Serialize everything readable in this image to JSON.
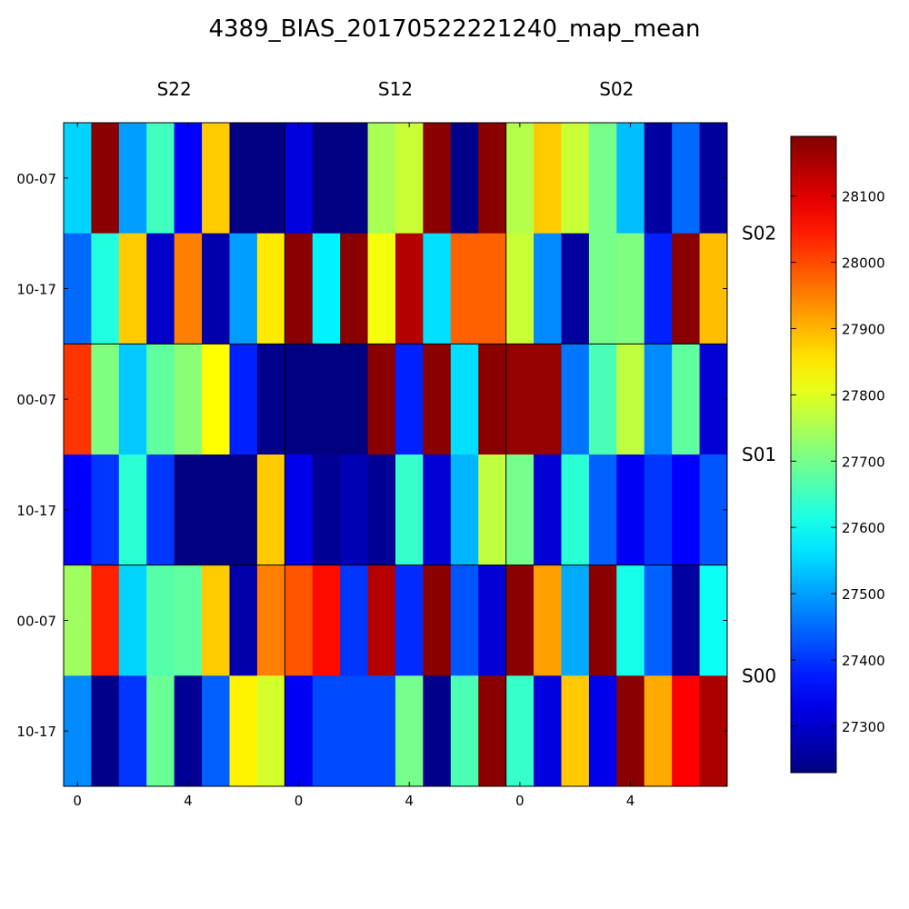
{
  "chart_data": {
    "type": "heatmap",
    "title": "4389_BIAS_20170522221240_map_mean",
    "column_groups": [
      "S22",
      "S12",
      "S02"
    ],
    "row_groups": [
      "S02",
      "S01",
      "S00"
    ],
    "row_labels": [
      "00-07",
      "10-17",
      "00-07",
      "10-17",
      "00-07",
      "10-17"
    ],
    "x_tick_labels": [
      "0",
      "4",
      "0",
      "4",
      "0",
      "4"
    ],
    "colorbar": {
      "colormap": "jet",
      "vmin": 27230,
      "vmax": 28190,
      "ticks": [
        "27300",
        "27400",
        "27500",
        "27600",
        "27700",
        "27800",
        "27900",
        "28000",
        "28100"
      ]
    },
    "values": [
      [
        27550,
        28180,
        27500,
        27650,
        27350,
        27880,
        27230,
        27230,
        27320,
        27230,
        27230,
        27750,
        27780,
        28180,
        27240,
        28180,
        27760,
        27880,
        27780,
        27700,
        27530,
        27260,
        27450,
        27260
      ],
      [
        27450,
        27620,
        27880,
        27300,
        27950,
        27270,
        27500,
        27850,
        28180,
        27580,
        28180,
        27820,
        28140,
        27560,
        27980,
        27980,
        27780,
        27480,
        27260,
        27700,
        27710,
        27380,
        28180,
        27890
      ],
      [
        28020,
        27710,
        27540,
        27680,
        27720,
        27830,
        27380,
        27240,
        27230,
        27230,
        27230,
        28180,
        27380,
        28180,
        27560,
        28180,
        28170,
        28170,
        27460,
        27660,
        27770,
        27480,
        27680,
        27310
      ],
      [
        27350,
        27400,
        27630,
        27400,
        27230,
        27230,
        27230,
        27880,
        27330,
        27250,
        27280,
        27250,
        27640,
        27310,
        27520,
        27770,
        27700,
        27310,
        27630,
        27440,
        27340,
        27400,
        27350,
        27430
      ],
      [
        27740,
        28040,
        27550,
        27670,
        27680,
        27880,
        27270,
        27950,
        27990,
        28060,
        27400,
        28140,
        27390,
        28180,
        27430,
        27310,
        28180,
        27920,
        27510,
        28180,
        27610,
        27440,
        27260,
        27600
      ],
      [
        27480,
        27240,
        27400,
        27690,
        27250,
        27440,
        27840,
        27790,
        27340,
        27420,
        27420,
        27420,
        27700,
        27240,
        27660,
        28180,
        27640,
        27320,
        27880,
        27330,
        28180,
        27910,
        28070,
        28150
      ]
    ]
  }
}
